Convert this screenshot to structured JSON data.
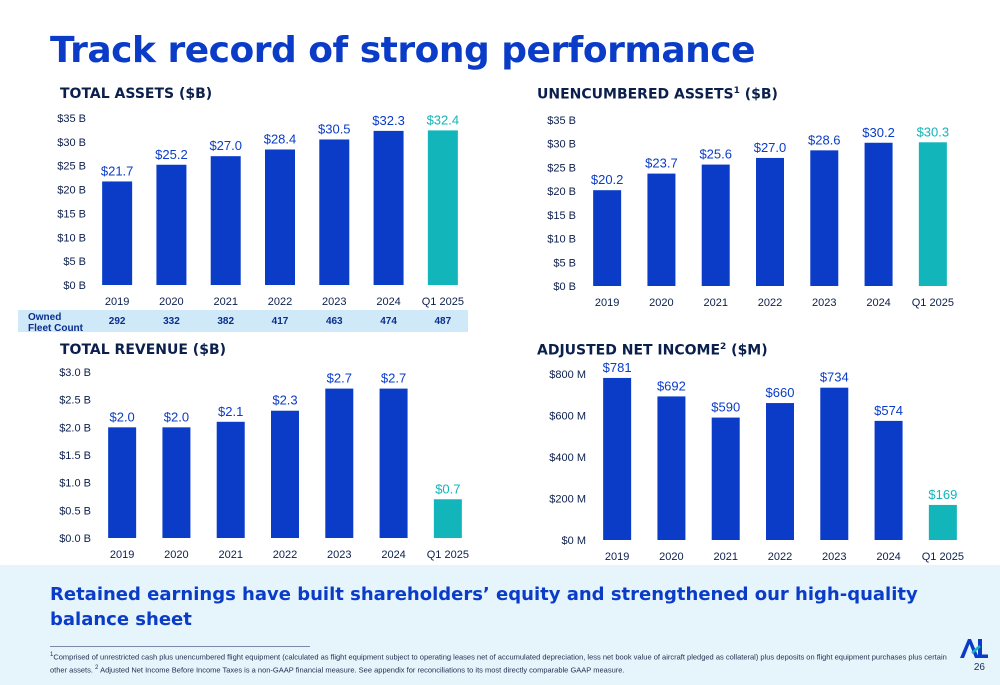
{
  "page_title": "Track record of strong performance",
  "takeaway": "Retained earnings have built shareholders’ equity and strengthened our high-quality balance sheet",
  "footnote": {
    "marker1": "1",
    "text1": "Comprised of unrestricted cash plus unencumbered flight equipment (calculated as flight equipment subject to operating leases net of accumulated depreciation, less net book value of aircraft pledged as collateral) plus deposits on flight equipment purchases plus certain other assets.",
    "marker2": "2",
    "text2": "Adjusted Net Income Before Income Taxes is a non-GAAP financial measure. See appendix for reconciliations to its most directly comparable GAAP measure."
  },
  "page_number": "26",
  "logo_text": "AL",
  "colors": {
    "title_blue": "#0a3cc8",
    "bar_blue": "#0a3cc8",
    "bar_teal": "#12b5b9",
    "label_blue": "#0a3cc8",
    "label_teal": "#12b5b9",
    "band_light": "#cfe9f8",
    "footer_band": "#e6f4fc"
  },
  "fleet": {
    "label_line1": "Owned",
    "label_line2": "Fleet Count",
    "values": [
      "292",
      "332",
      "382",
      "417",
      "463",
      "474",
      "487"
    ]
  },
  "chart_data": [
    {
      "type": "bar",
      "title": "TOTAL ASSETS ($B)",
      "title_sup": "",
      "title_suffix": "",
      "categories": [
        "2019",
        "2020",
        "2021",
        "2022",
        "2023",
        "2024",
        "Q1 2025"
      ],
      "values": [
        21.7,
        25.2,
        27.0,
        28.4,
        30.5,
        32.3,
        32.4
      ],
      "data_labels": [
        "$21.7",
        "$25.2",
        "$27.0",
        "$28.4",
        "$30.5",
        "$32.3",
        "$32.4"
      ],
      "highlight_index": 6,
      "ylim": [
        0,
        35
      ],
      "yticks": [
        0,
        5,
        10,
        15,
        20,
        25,
        30,
        35
      ],
      "ytick_labels": [
        "$0 B",
        "$5 B",
        "$10 B",
        "$15 B",
        "$20 B",
        "$25 B",
        "$30 B",
        "$35 B"
      ],
      "grid": false,
      "legend": "none"
    },
    {
      "type": "bar",
      "title": "UNENCUMBERED ASSETS",
      "title_sup": "1",
      "title_suffix": " ($B)",
      "categories": [
        "2019",
        "2020",
        "2021",
        "2022",
        "2023",
        "2024",
        "Q1 2025"
      ],
      "values": [
        20.2,
        23.7,
        25.6,
        27.0,
        28.6,
        30.2,
        30.3
      ],
      "data_labels": [
        "$20.2",
        "$23.7",
        "$25.6",
        "$27.0",
        "$28.6",
        "$30.2",
        "$30.3"
      ],
      "highlight_index": 6,
      "ylim": [
        0,
        35
      ],
      "yticks": [
        0,
        5,
        10,
        15,
        20,
        25,
        30,
        35
      ],
      "ytick_labels": [
        "$0 B",
        "$5 B",
        "$10 B",
        "$15 B",
        "$20 B",
        "$25 B",
        "$30 B",
        "$35 B"
      ],
      "grid": false,
      "legend": "none"
    },
    {
      "type": "bar",
      "title": "TOTAL REVENUE ($B)",
      "title_sup": "",
      "title_suffix": "",
      "categories": [
        "2019",
        "2020",
        "2021",
        "2022",
        "2023",
        "2024",
        "Q1 2025"
      ],
      "values": [
        2.0,
        2.0,
        2.1,
        2.3,
        2.7,
        2.7,
        0.7
      ],
      "data_labels": [
        "$2.0",
        "$2.0",
        "$2.1",
        "$2.3",
        "$2.7",
        "$2.7",
        "$0.7"
      ],
      "highlight_index": 6,
      "ylim": [
        0,
        3.0
      ],
      "yticks": [
        0,
        0.5,
        1.0,
        1.5,
        2.0,
        2.5,
        3.0
      ],
      "ytick_labels": [
        "$0.0 B",
        "$0.5 B",
        "$1.0 B",
        "$1.5 B",
        "$2.0 B",
        "$2.5 B",
        "$3.0 B"
      ],
      "grid": false,
      "legend": "none"
    },
    {
      "type": "bar",
      "title": "ADJUSTED NET INCOME",
      "title_sup": "2",
      "title_suffix": " ($M)",
      "categories": [
        "2019",
        "2020",
        "2021",
        "2022",
        "2023",
        "2024",
        "Q1 2025"
      ],
      "values": [
        781,
        692,
        590,
        660,
        734,
        574,
        169
      ],
      "data_labels": [
        "$781",
        "$692",
        "$590",
        "$660",
        "$734",
        "$574",
        "$169"
      ],
      "highlight_index": 6,
      "ylim": [
        0,
        800
      ],
      "yticks": [
        0,
        200,
        400,
        600,
        800
      ],
      "ytick_labels": [
        "$0 M",
        "$200 M",
        "$400 M",
        "$600 M",
        "$800 M"
      ],
      "grid": false,
      "legend": "none"
    }
  ]
}
